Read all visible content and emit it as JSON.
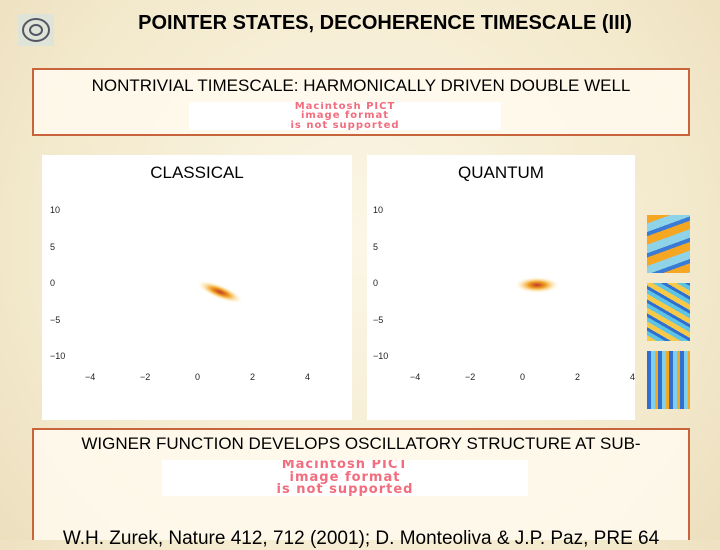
{
  "header": {
    "title": "POINTER STATES, DECOHERENCE TIMESCALE (III)"
  },
  "top_box": {
    "text": "NONTRIVIAL TIMESCALE: HARMONICALLY DRIVEN DOUBLE WELL",
    "image_placeholder": [
      "Macintosh PICT",
      "image format",
      "is not supported"
    ]
  },
  "panels": [
    {
      "label": "CLASSICAL",
      "yticks": [
        "10",
        "5",
        "0",
        "−5",
        "−10"
      ],
      "xticks": [
        "−4",
        "−2",
        "0",
        "2",
        "4"
      ]
    },
    {
      "label": "QUANTUM",
      "yticks": [
        "10",
        "5",
        "0",
        "−5",
        "−10"
      ],
      "xticks": [
        "−4",
        "−2",
        "0",
        "2",
        "4"
      ]
    }
  ],
  "bottom_box": {
    "text": "WIGNER FUNCTION DEVELOPS OSCILLATORY STRUCTURE AT SUB-",
    "image_placeholder": [
      "Macintosh PICT",
      "image format",
      "is not supported"
    ],
    "citation": "W.H. Zurek, Nature 412, 712 (2001); D. Monteoliva & J.P. Paz, PRE 64"
  }
}
